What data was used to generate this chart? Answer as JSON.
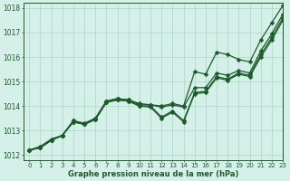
{
  "xlabel": "Graphe pression niveau de la mer (hPa)",
  "xlim": [
    -0.5,
    23
  ],
  "ylim": [
    1011.8,
    1018.2
  ],
  "yticks": [
    1012,
    1013,
    1014,
    1015,
    1016,
    1017,
    1018
  ],
  "xticks": [
    0,
    1,
    2,
    3,
    4,
    5,
    6,
    7,
    8,
    9,
    10,
    11,
    12,
    13,
    14,
    15,
    16,
    17,
    18,
    19,
    20,
    21,
    22,
    23
  ],
  "bg_color": "#d5f0e8",
  "grid_color": "#aad8c8",
  "line_color": "#1a5c28",
  "text_color": "#1a5c28",
  "series": [
    [
      1012.2,
      1012.3,
      1012.6,
      1012.8,
      1013.4,
      1013.25,
      1013.5,
      1014.2,
      1014.3,
      1014.25,
      1014.05,
      1014.05,
      1013.95,
      1014.05,
      1013.95,
      1014.75,
      1014.75,
      1015.35,
      1015.25,
      1015.45,
      1015.35,
      1016.25,
      1016.95,
      1017.75
    ],
    [
      1012.2,
      1012.3,
      1012.6,
      1012.8,
      1013.35,
      1013.25,
      1013.45,
      1014.15,
      1014.25,
      1014.2,
      1014.0,
      1014.0,
      1013.55,
      1013.8,
      1013.4,
      1014.55,
      1014.6,
      1015.2,
      1015.1,
      1015.35,
      1015.25,
      1016.1,
      1016.8,
      1017.6
    ],
    [
      1012.2,
      1012.3,
      1012.6,
      1012.8,
      1013.35,
      1013.25,
      1013.45,
      1014.15,
      1014.25,
      1014.2,
      1014.0,
      1013.95,
      1013.5,
      1013.75,
      1013.35,
      1014.5,
      1014.55,
      1015.15,
      1015.05,
      1015.3,
      1015.2,
      1016.0,
      1016.7,
      1017.5
    ],
    [
      1012.2,
      1012.35,
      1012.65,
      1012.8,
      1013.4,
      1013.3,
      1013.5,
      1014.2,
      1014.3,
      1014.25,
      1014.1,
      1014.05,
      1014.0,
      1014.1,
      1014.0,
      1015.4,
      1015.3,
      1016.2,
      1016.1,
      1015.9,
      1015.8,
      1016.7,
      1017.4,
      1018.1
    ]
  ],
  "marker_size": 2.5,
  "line_width": 0.9
}
